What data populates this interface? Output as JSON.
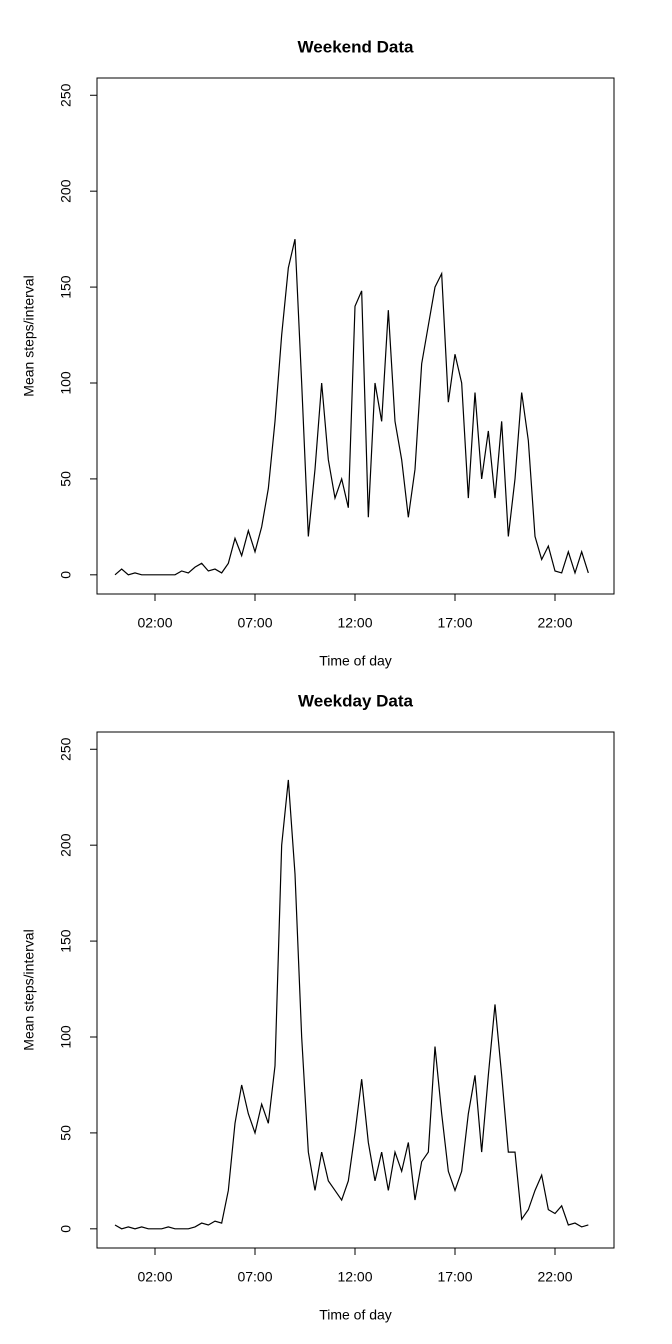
{
  "chart_data": [
    {
      "type": "line",
      "title": "Weekend Data",
      "xlabel": "Time of day",
      "ylabel": "Mean steps/interval",
      "x": [
        0,
        20,
        40,
        60,
        80,
        100,
        120,
        140,
        160,
        180,
        200,
        220,
        240,
        260,
        280,
        300,
        320,
        340,
        360,
        380,
        400,
        420,
        440,
        460,
        480,
        500,
        520,
        540,
        560,
        580,
        600,
        620,
        640,
        660,
        680,
        700,
        720,
        740,
        760,
        780,
        800,
        820,
        840,
        860,
        880,
        900,
        920,
        940,
        960,
        980,
        1000,
        1020,
        1040,
        1060,
        1080,
        1100,
        1120,
        1140,
        1160,
        1180,
        1200,
        1220,
        1240,
        1260,
        1280,
        1300,
        1320,
        1340,
        1360,
        1380,
        1400,
        1420
      ],
      "series": [
        {
          "color": "#000000",
          "values": [
            0,
            3,
            0,
            1,
            0,
            0,
            0,
            0,
            0,
            0,
            2,
            1,
            4,
            6,
            2,
            3,
            1,
            6,
            19,
            10,
            23,
            12,
            25,
            45,
            80,
            125,
            160,
            175,
            100,
            20,
            55,
            100,
            60,
            40,
            50,
            35,
            140,
            148,
            30,
            100,
            80,
            138,
            80,
            60,
            30,
            55,
            110,
            130,
            150,
            157,
            90,
            115,
            100,
            40,
            95,
            50,
            75,
            40,
            80,
            20,
            50,
            95,
            70,
            20,
            8,
            15,
            2,
            1,
            12,
            1,
            12,
            1
          ]
        }
      ],
      "xlim": [
        -54,
        1497
      ],
      "ylim": [
        -10,
        259
      ],
      "xticks": [
        {
          "value": 120,
          "label": "02:00"
        },
        {
          "value": 420,
          "label": "07:00"
        },
        {
          "value": 720,
          "label": "12:00"
        },
        {
          "value": 1020,
          "label": "17:00"
        },
        {
          "value": 1320,
          "label": "22:00"
        }
      ],
      "yticks": [
        0,
        50,
        100,
        150,
        200,
        250
      ]
    },
    {
      "type": "line",
      "title": "Weekday Data",
      "xlabel": "Time of day",
      "ylabel": "Mean steps/interval",
      "x": [
        0,
        20,
        40,
        60,
        80,
        100,
        120,
        140,
        160,
        180,
        200,
        220,
        240,
        260,
        280,
        300,
        320,
        340,
        360,
        380,
        400,
        420,
        440,
        460,
        480,
        500,
        520,
        540,
        560,
        580,
        600,
        620,
        640,
        660,
        680,
        700,
        720,
        740,
        760,
        780,
        800,
        820,
        840,
        860,
        880,
        900,
        920,
        940,
        960,
        980,
        1000,
        1020,
        1040,
        1060,
        1080,
        1100,
        1120,
        1140,
        1160,
        1180,
        1200,
        1220,
        1240,
        1260,
        1280,
        1300,
        1320,
        1340,
        1360,
        1380,
        1400,
        1420
      ],
      "series": [
        {
          "color": "#000000",
          "values": [
            2,
            0,
            1,
            0,
            1,
            0,
            0,
            0,
            1,
            0,
            0,
            0,
            1,
            3,
            2,
            4,
            3,
            20,
            55,
            75,
            60,
            50,
            65,
            55,
            85,
            200,
            234,
            185,
            100,
            40,
            20,
            40,
            25,
            20,
            15,
            25,
            50,
            78,
            45,
            25,
            40,
            20,
            40,
            30,
            45,
            15,
            35,
            40,
            95,
            60,
            30,
            20,
            30,
            60,
            80,
            40,
            80,
            117,
            80,
            40,
            40,
            5,
            10,
            20,
            28,
            10,
            8,
            12,
            2,
            3,
            1,
            2
          ]
        }
      ],
      "xlim": [
        -54,
        1497
      ],
      "ylim": [
        -10,
        259
      ],
      "xticks": [
        {
          "value": 120,
          "label": "02:00"
        },
        {
          "value": 420,
          "label": "07:00"
        },
        {
          "value": 720,
          "label": "12:00"
        },
        {
          "value": 1020,
          "label": "17:00"
        },
        {
          "value": 1320,
          "label": "22:00"
        }
      ],
      "yticks": [
        0,
        50,
        100,
        150,
        200,
        250
      ]
    }
  ]
}
